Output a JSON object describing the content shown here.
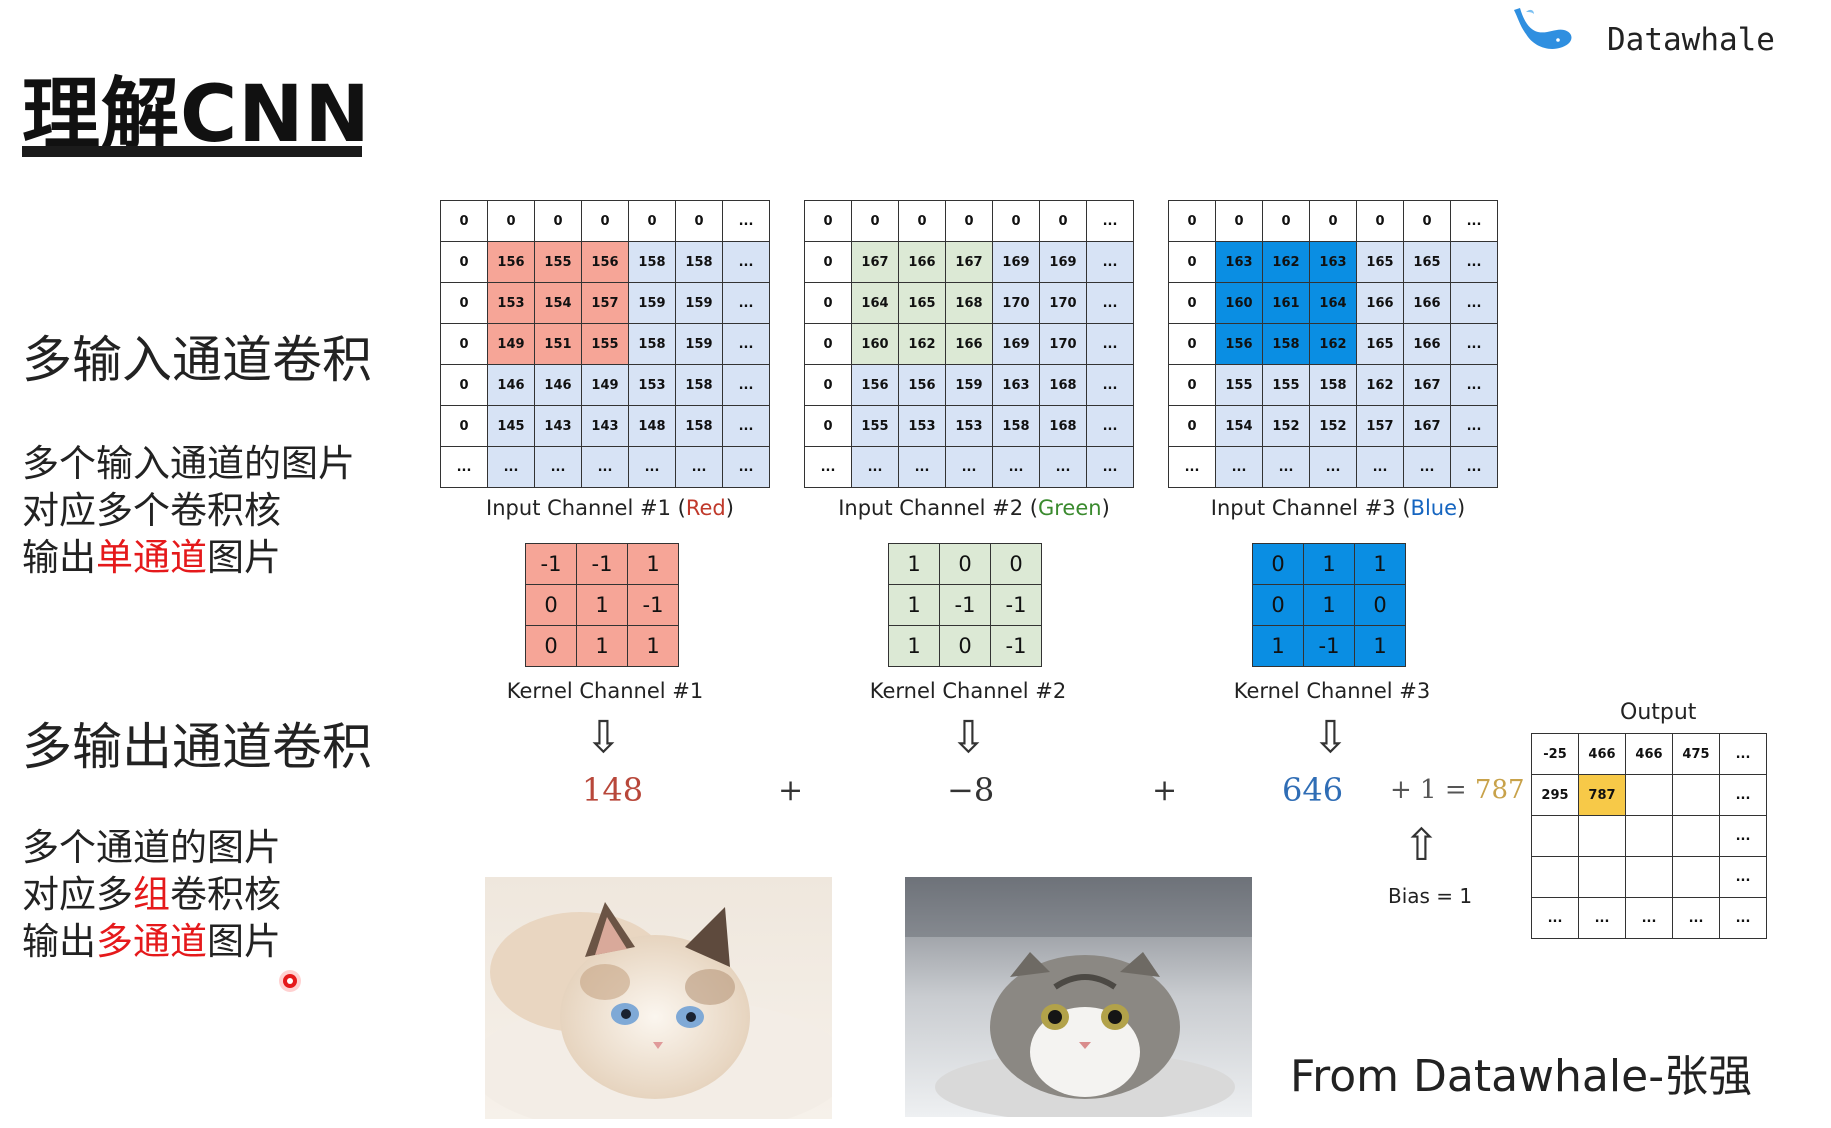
{
  "title": "理解CNN",
  "brand": {
    "name": "Datawhale",
    "footer": "From Datawhale-张强"
  },
  "left_panel": {
    "section1": {
      "heading": "多输入通道卷积",
      "lines": [
        {
          "parts": [
            {
              "text": "多个输入通道的图片",
              "highlight": false
            }
          ]
        },
        {
          "parts": [
            {
              "text": "对应多个卷积核",
              "highlight": false
            }
          ]
        },
        {
          "parts": [
            {
              "text": "输出",
              "highlight": false
            },
            {
              "text": "单通道",
              "highlight": true
            },
            {
              "text": "图片",
              "highlight": false
            }
          ]
        }
      ]
    },
    "section2": {
      "heading": "多输出通道卷积",
      "lines": [
        {
          "parts": [
            {
              "text": "多个通道的图片",
              "highlight": false
            }
          ]
        },
        {
          "parts": [
            {
              "text": "对应多",
              "highlight": false
            },
            {
              "text": "组",
              "highlight": true
            },
            {
              "text": "卷积核",
              "highlight": false
            }
          ]
        },
        {
          "parts": [
            {
              "text": "输出",
              "highlight": false
            },
            {
              "text": "多通道",
              "highlight": true
            },
            {
              "text": "图片",
              "highlight": false
            }
          ]
        }
      ]
    }
  },
  "input_channels": [
    {
      "caption_prefix": "Input Channel #1 (",
      "caption_color_word": "Red",
      "caption_suffix": ")",
      "highlight": "r",
      "rows": [
        [
          "0",
          "0",
          "0",
          "0",
          "0",
          "0",
          "..."
        ],
        [
          "0",
          "156",
          "155",
          "156",
          "158",
          "158",
          "..."
        ],
        [
          "0",
          "153",
          "154",
          "157",
          "159",
          "159",
          "..."
        ],
        [
          "0",
          "149",
          "151",
          "155",
          "158",
          "159",
          "..."
        ],
        [
          "0",
          "146",
          "146",
          "149",
          "153",
          "158",
          "..."
        ],
        [
          "0",
          "145",
          "143",
          "143",
          "148",
          "158",
          "..."
        ],
        [
          "...",
          "...",
          "...",
          "...",
          "...",
          "...",
          "..."
        ]
      ]
    },
    {
      "caption_prefix": "Input Channel #2 (",
      "caption_color_word": "Green",
      "caption_suffix": ")",
      "highlight": "g",
      "rows": [
        [
          "0",
          "0",
          "0",
          "0",
          "0",
          "0",
          "..."
        ],
        [
          "0",
          "167",
          "166",
          "167",
          "169",
          "169",
          "..."
        ],
        [
          "0",
          "164",
          "165",
          "168",
          "170",
          "170",
          "..."
        ],
        [
          "0",
          "160",
          "162",
          "166",
          "169",
          "170",
          "..."
        ],
        [
          "0",
          "156",
          "156",
          "159",
          "163",
          "168",
          "..."
        ],
        [
          "0",
          "155",
          "153",
          "153",
          "158",
          "168",
          "..."
        ],
        [
          "...",
          "...",
          "...",
          "...",
          "...",
          "...",
          "..."
        ]
      ]
    },
    {
      "caption_prefix": "Input Channel #3 (",
      "caption_color_word": "Blue",
      "caption_suffix": ")",
      "highlight": "u",
      "rows": [
        [
          "0",
          "0",
          "0",
          "0",
          "0",
          "0",
          "..."
        ],
        [
          "0",
          "163",
          "162",
          "163",
          "165",
          "165",
          "..."
        ],
        [
          "0",
          "160",
          "161",
          "164",
          "166",
          "166",
          "..."
        ],
        [
          "0",
          "156",
          "158",
          "162",
          "165",
          "166",
          "..."
        ],
        [
          "0",
          "155",
          "155",
          "158",
          "162",
          "167",
          "..."
        ],
        [
          "0",
          "154",
          "152",
          "152",
          "157",
          "167",
          "..."
        ],
        [
          "...",
          "...",
          "...",
          "...",
          "...",
          "...",
          "..."
        ]
      ]
    }
  ],
  "kernels": [
    {
      "caption": "Kernel Channel #1",
      "rows": [
        [
          "-1",
          "-1",
          "1"
        ],
        [
          "0",
          "1",
          "-1"
        ],
        [
          "0",
          "1",
          "1"
        ]
      ]
    },
    {
      "caption": "Kernel Channel #2",
      "rows": [
        [
          "1",
          "0",
          "0"
        ],
        [
          "1",
          "-1",
          "-1"
        ],
        [
          "1",
          "0",
          "-1"
        ]
      ]
    },
    {
      "caption": "Kernel Channel #3",
      "rows": [
        [
          "0",
          "1",
          "1"
        ],
        [
          "0",
          "1",
          "0"
        ],
        [
          "1",
          "-1",
          "1"
        ]
      ]
    }
  ],
  "computation": {
    "results": [
      "148",
      "−8",
      "646"
    ],
    "plus": "+",
    "bias_expr": "+ 1 = ",
    "total": "787",
    "arrow": "⇩",
    "bias_arrow": "⇧",
    "bias_label": "Bias = 1",
    "colors": {
      "r1": "#b8473a",
      "r2": "#333333",
      "r3": "#2f6db5",
      "total": "#c8a24a"
    }
  },
  "output": {
    "title": "Output",
    "rows": [
      [
        "-25",
        "466",
        "466",
        "475",
        "..."
      ],
      [
        "295",
        "787",
        "",
        "",
        "..."
      ],
      [
        "",
        "",
        "",
        "",
        "..."
      ],
      [
        "",
        "",
        "",
        "",
        "..."
      ],
      [
        "...",
        "...",
        "...",
        "...",
        "..."
      ]
    ]
  }
}
